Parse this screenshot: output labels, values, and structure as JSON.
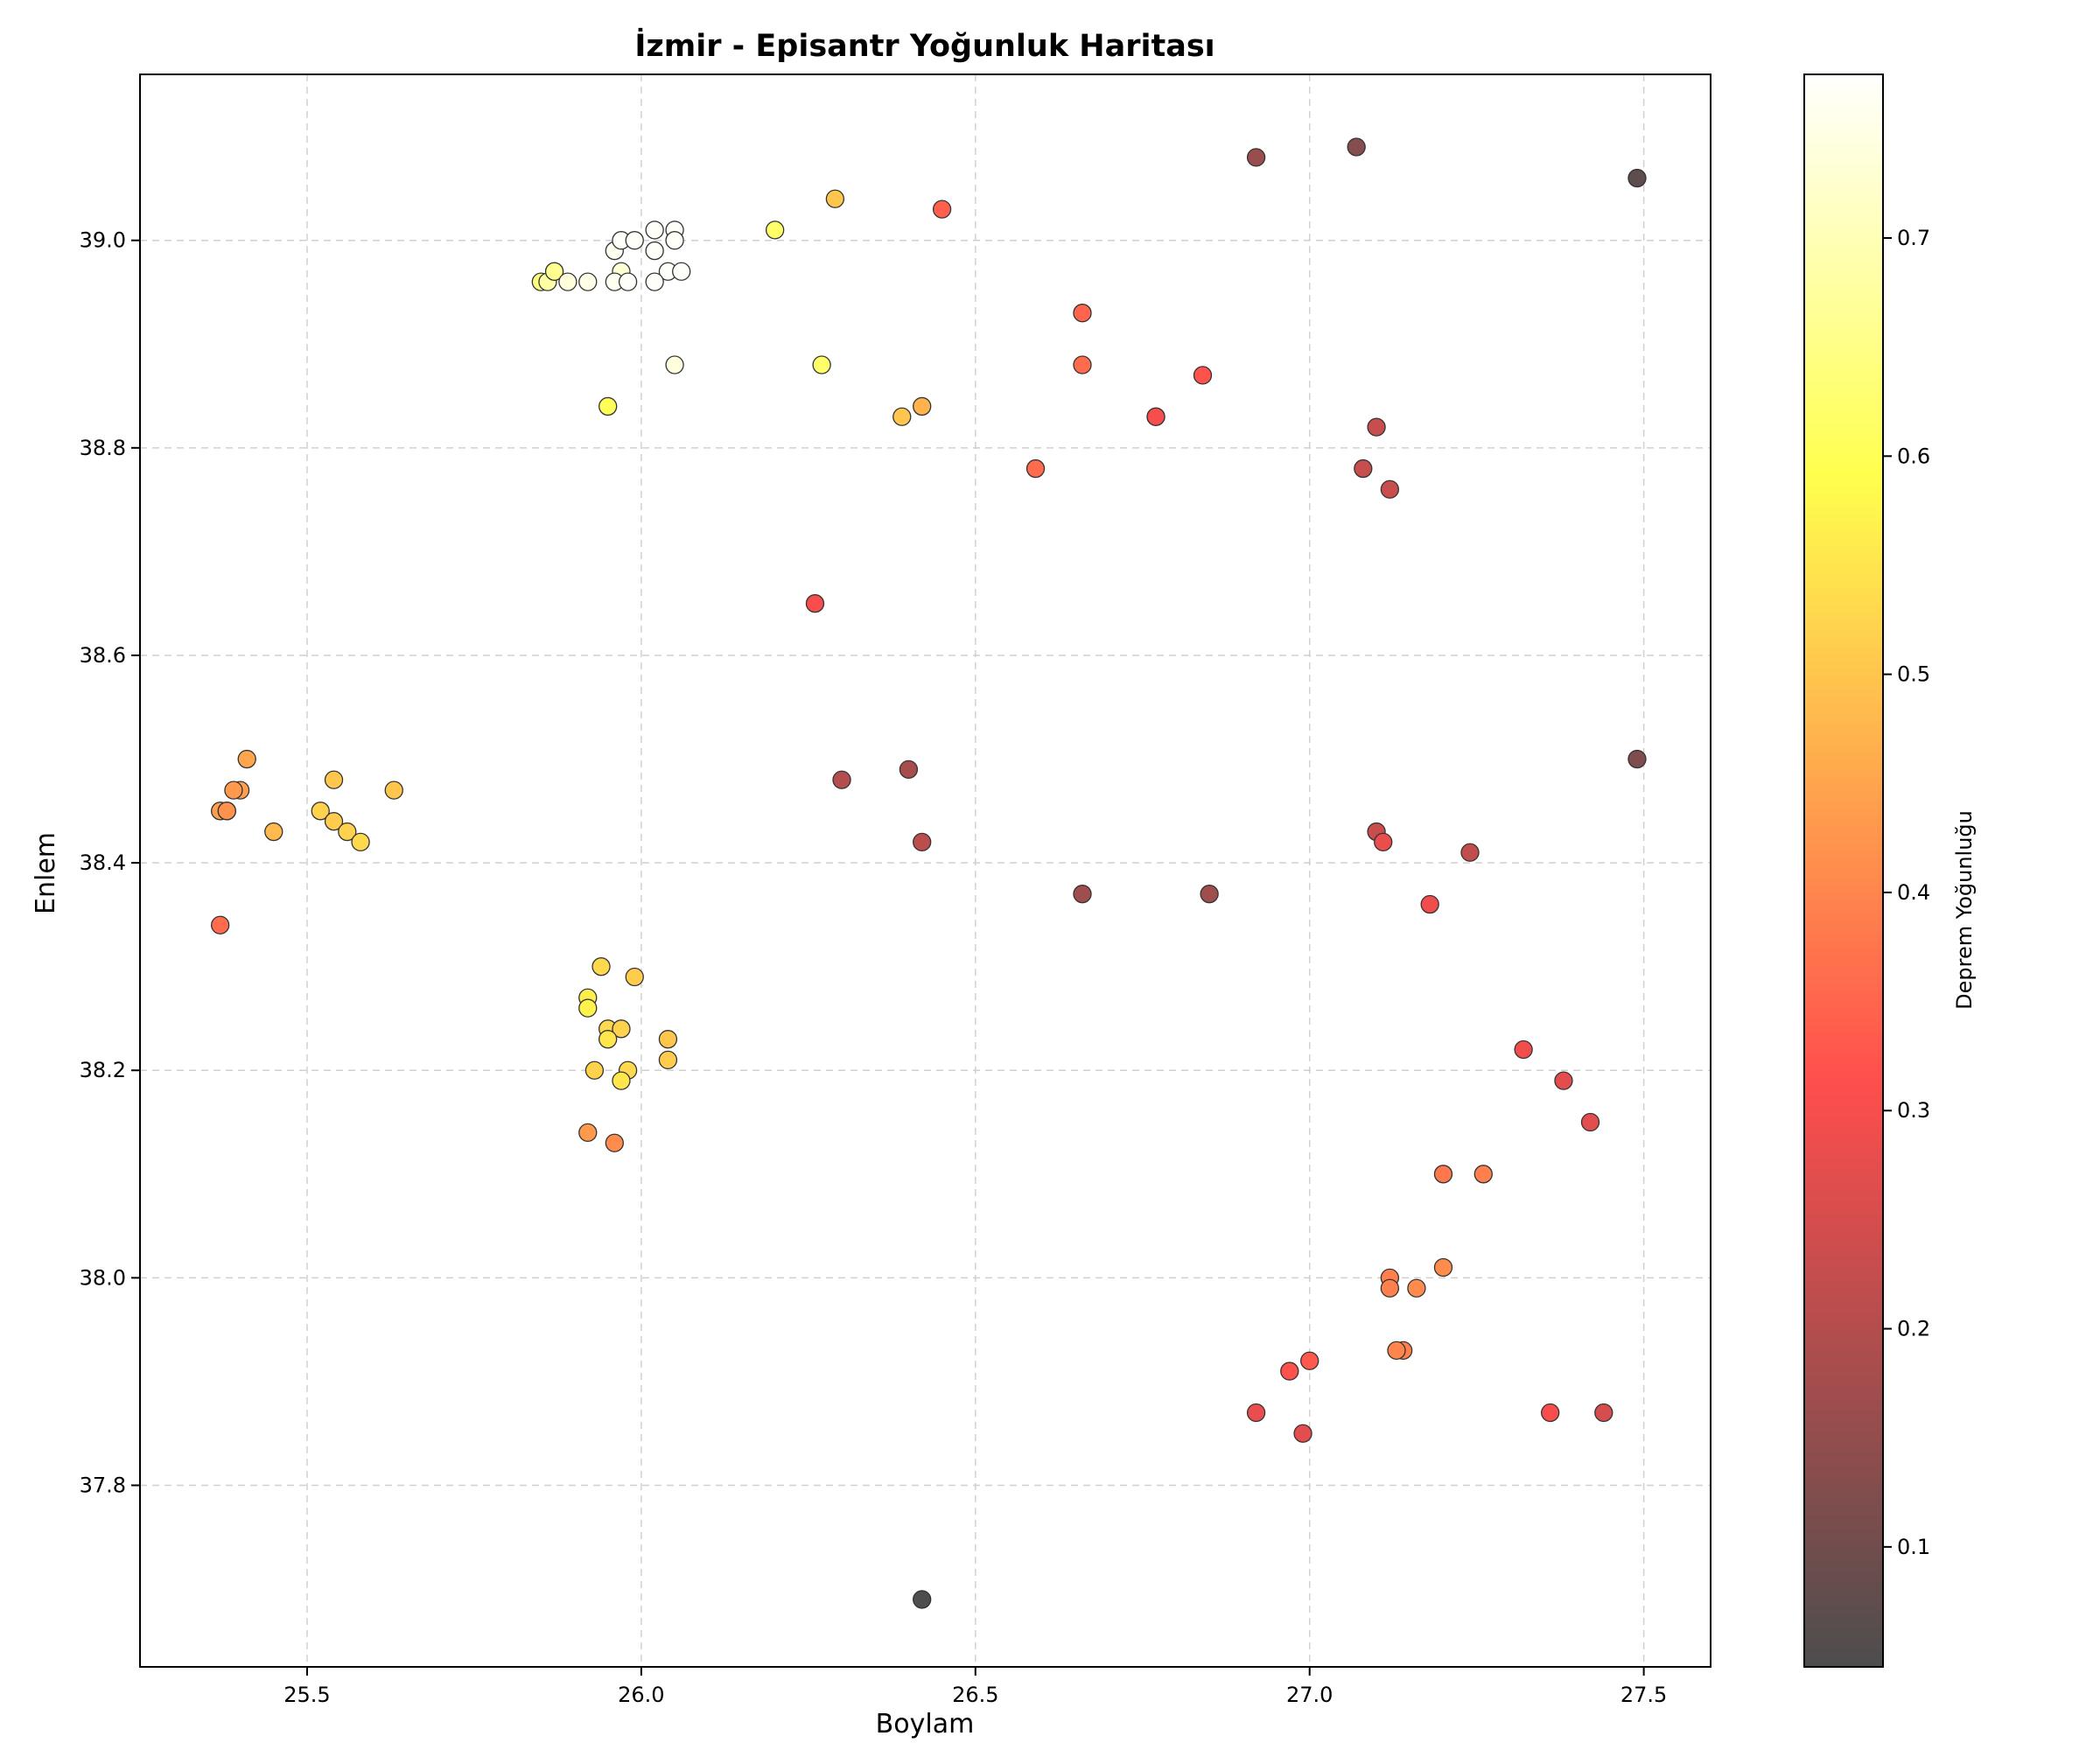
{
  "chart_data": {
    "type": "scatter",
    "title": "İzmir - Episantr Yoğunluk Haritası",
    "xlabel": "Boylam",
    "ylabel": "Enlem",
    "xlim": [
      25.25,
      27.6
    ],
    "ylim": [
      37.625,
      39.16
    ],
    "xticks": [
      25.5,
      26.0,
      26.5,
      27.0,
      27.5
    ],
    "yticks": [
      37.8,
      38.0,
      38.2,
      38.4,
      38.6,
      38.8,
      39.0
    ],
    "xtick_labels": [
      "25.5",
      "26.0",
      "26.5",
      "27.0",
      "27.5"
    ],
    "ytick_labels": [
      "37.8",
      "38.0",
      "38.2",
      "38.4",
      "38.6",
      "38.8",
      "39.0"
    ],
    "grid": true,
    "colormap": "hot",
    "colorbar": {
      "label": "Deprem Yoğunluğu",
      "range": [
        0.045,
        0.775
      ],
      "ticks": [
        0.1,
        0.2,
        0.3,
        0.4,
        0.5,
        0.6,
        0.7
      ],
      "tick_labels": [
        "0.1",
        "0.2",
        "0.3",
        "0.4",
        "0.5",
        "0.6",
        "0.7"
      ]
    },
    "points": [
      {
        "x": 25.85,
        "y": 38.96,
        "v": 0.64
      },
      {
        "x": 25.86,
        "y": 38.96,
        "v": 0.68
      },
      {
        "x": 25.87,
        "y": 38.97,
        "v": 0.65
      },
      {
        "x": 25.87,
        "y": 38.97,
        "v": 0.66
      },
      {
        "x": 25.89,
        "y": 38.96,
        "v": 0.74
      },
      {
        "x": 25.92,
        "y": 38.96,
        "v": 0.75
      },
      {
        "x": 25.96,
        "y": 38.99,
        "v": 0.76
      },
      {
        "x": 25.97,
        "y": 38.97,
        "v": 0.73
      },
      {
        "x": 25.97,
        "y": 39.0,
        "v": 0.77
      },
      {
        "x": 25.99,
        "y": 39.0,
        "v": 0.77
      },
      {
        "x": 25.96,
        "y": 38.96,
        "v": 0.76
      },
      {
        "x": 25.98,
        "y": 38.96,
        "v": 0.77
      },
      {
        "x": 26.02,
        "y": 39.01,
        "v": 0.77
      },
      {
        "x": 26.02,
        "y": 38.99,
        "v": 0.77
      },
      {
        "x": 26.05,
        "y": 39.01,
        "v": 0.77
      },
      {
        "x": 26.05,
        "y": 39.0,
        "v": 0.77
      },
      {
        "x": 26.04,
        "y": 38.97,
        "v": 0.77
      },
      {
        "x": 26.06,
        "y": 38.97,
        "v": 0.77
      },
      {
        "x": 26.02,
        "y": 38.96,
        "v": 0.77
      },
      {
        "x": 26.05,
        "y": 38.88,
        "v": 0.74
      },
      {
        "x": 26.2,
        "y": 39.01,
        "v": 0.62
      },
      {
        "x": 26.29,
        "y": 39.04,
        "v": 0.5
      },
      {
        "x": 26.27,
        "y": 38.88,
        "v": 0.62
      },
      {
        "x": 25.95,
        "y": 38.84,
        "v": 0.6
      },
      {
        "x": 26.45,
        "y": 39.03,
        "v": 0.34
      },
      {
        "x": 26.39,
        "y": 38.83,
        "v": 0.5
      },
      {
        "x": 26.42,
        "y": 38.84,
        "v": 0.47
      },
      {
        "x": 26.66,
        "y": 38.93,
        "v": 0.35
      },
      {
        "x": 26.66,
        "y": 38.88,
        "v": 0.36
      },
      {
        "x": 26.59,
        "y": 38.78,
        "v": 0.36
      },
      {
        "x": 26.77,
        "y": 38.83,
        "v": 0.32
      },
      {
        "x": 26.77,
        "y": 38.83,
        "v": 0.3
      },
      {
        "x": 26.84,
        "y": 38.87,
        "v": 0.32
      },
      {
        "x": 26.92,
        "y": 39.08,
        "v": 0.16
      },
      {
        "x": 27.07,
        "y": 39.09,
        "v": 0.13
      },
      {
        "x": 27.49,
        "y": 39.06,
        "v": 0.07
      },
      {
        "x": 27.1,
        "y": 38.82,
        "v": 0.23
      },
      {
        "x": 27.08,
        "y": 38.78,
        "v": 0.23
      },
      {
        "x": 27.12,
        "y": 38.76,
        "v": 0.23
      },
      {
        "x": 26.26,
        "y": 38.65,
        "v": 0.3
      },
      {
        "x": 25.41,
        "y": 38.5,
        "v": 0.45
      },
      {
        "x": 25.4,
        "y": 38.47,
        "v": 0.44
      },
      {
        "x": 25.39,
        "y": 38.47,
        "v": 0.43
      },
      {
        "x": 25.37,
        "y": 38.45,
        "v": 0.44
      },
      {
        "x": 25.38,
        "y": 38.45,
        "v": 0.42
      },
      {
        "x": 25.38,
        "y": 38.45,
        "v": 0.42
      },
      {
        "x": 25.45,
        "y": 38.43,
        "v": 0.48
      },
      {
        "x": 25.54,
        "y": 38.48,
        "v": 0.5
      },
      {
        "x": 25.52,
        "y": 38.45,
        "v": 0.52
      },
      {
        "x": 25.54,
        "y": 38.44,
        "v": 0.51
      },
      {
        "x": 25.56,
        "y": 38.43,
        "v": 0.52
      },
      {
        "x": 25.58,
        "y": 38.42,
        "v": 0.53
      },
      {
        "x": 25.63,
        "y": 38.47,
        "v": 0.5
      },
      {
        "x": 25.37,
        "y": 38.34,
        "v": 0.36
      },
      {
        "x": 26.3,
        "y": 38.48,
        "v": 0.2
      },
      {
        "x": 26.4,
        "y": 38.49,
        "v": 0.18
      },
      {
        "x": 26.42,
        "y": 38.42,
        "v": 0.21
      },
      {
        "x": 26.66,
        "y": 38.37,
        "v": 0.17
      },
      {
        "x": 26.85,
        "y": 38.37,
        "v": 0.17
      },
      {
        "x": 27.1,
        "y": 38.43,
        "v": 0.23
      },
      {
        "x": 27.11,
        "y": 38.42,
        "v": 0.28
      },
      {
        "x": 27.24,
        "y": 38.41,
        "v": 0.22
      },
      {
        "x": 27.49,
        "y": 38.5,
        "v": 0.12
      },
      {
        "x": 27.18,
        "y": 38.36,
        "v": 0.29
      },
      {
        "x": 25.94,
        "y": 38.3,
        "v": 0.53
      },
      {
        "x": 25.99,
        "y": 38.29,
        "v": 0.51
      },
      {
        "x": 25.92,
        "y": 38.27,
        "v": 0.56
      },
      {
        "x": 25.92,
        "y": 38.26,
        "v": 0.57
      },
      {
        "x": 25.95,
        "y": 38.24,
        "v": 0.53
      },
      {
        "x": 25.97,
        "y": 38.24,
        "v": 0.52
      },
      {
        "x": 25.95,
        "y": 38.23,
        "v": 0.55
      },
      {
        "x": 26.04,
        "y": 38.23,
        "v": 0.5
      },
      {
        "x": 26.04,
        "y": 38.21,
        "v": 0.51
      },
      {
        "x": 25.93,
        "y": 38.2,
        "v": 0.52
      },
      {
        "x": 25.98,
        "y": 38.2,
        "v": 0.53
      },
      {
        "x": 25.97,
        "y": 38.19,
        "v": 0.55
      },
      {
        "x": 25.92,
        "y": 38.14,
        "v": 0.43
      },
      {
        "x": 25.96,
        "y": 38.13,
        "v": 0.41
      },
      {
        "x": 27.32,
        "y": 38.22,
        "v": 0.29
      },
      {
        "x": 27.38,
        "y": 38.19,
        "v": 0.27
      },
      {
        "x": 27.42,
        "y": 38.15,
        "v": 0.27
      },
      {
        "x": 27.2,
        "y": 38.1,
        "v": 0.38
      },
      {
        "x": 27.26,
        "y": 38.1,
        "v": 0.39
      },
      {
        "x": 27.2,
        "y": 38.01,
        "v": 0.41
      },
      {
        "x": 27.12,
        "y": 38.0,
        "v": 0.39
      },
      {
        "x": 27.12,
        "y": 37.99,
        "v": 0.39
      },
      {
        "x": 27.16,
        "y": 37.99,
        "v": 0.41
      },
      {
        "x": 27.14,
        "y": 37.93,
        "v": 0.39
      },
      {
        "x": 27.13,
        "y": 37.93,
        "v": 0.4
      },
      {
        "x": 26.97,
        "y": 37.91,
        "v": 0.32
      },
      {
        "x": 27.0,
        "y": 37.92,
        "v": 0.33
      },
      {
        "x": 26.92,
        "y": 37.87,
        "v": 0.28
      },
      {
        "x": 26.99,
        "y": 37.85,
        "v": 0.27
      },
      {
        "x": 27.36,
        "y": 37.87,
        "v": 0.3
      },
      {
        "x": 27.44,
        "y": 37.87,
        "v": 0.25
      },
      {
        "x": 26.42,
        "y": 37.69,
        "v": 0.05
      }
    ]
  }
}
